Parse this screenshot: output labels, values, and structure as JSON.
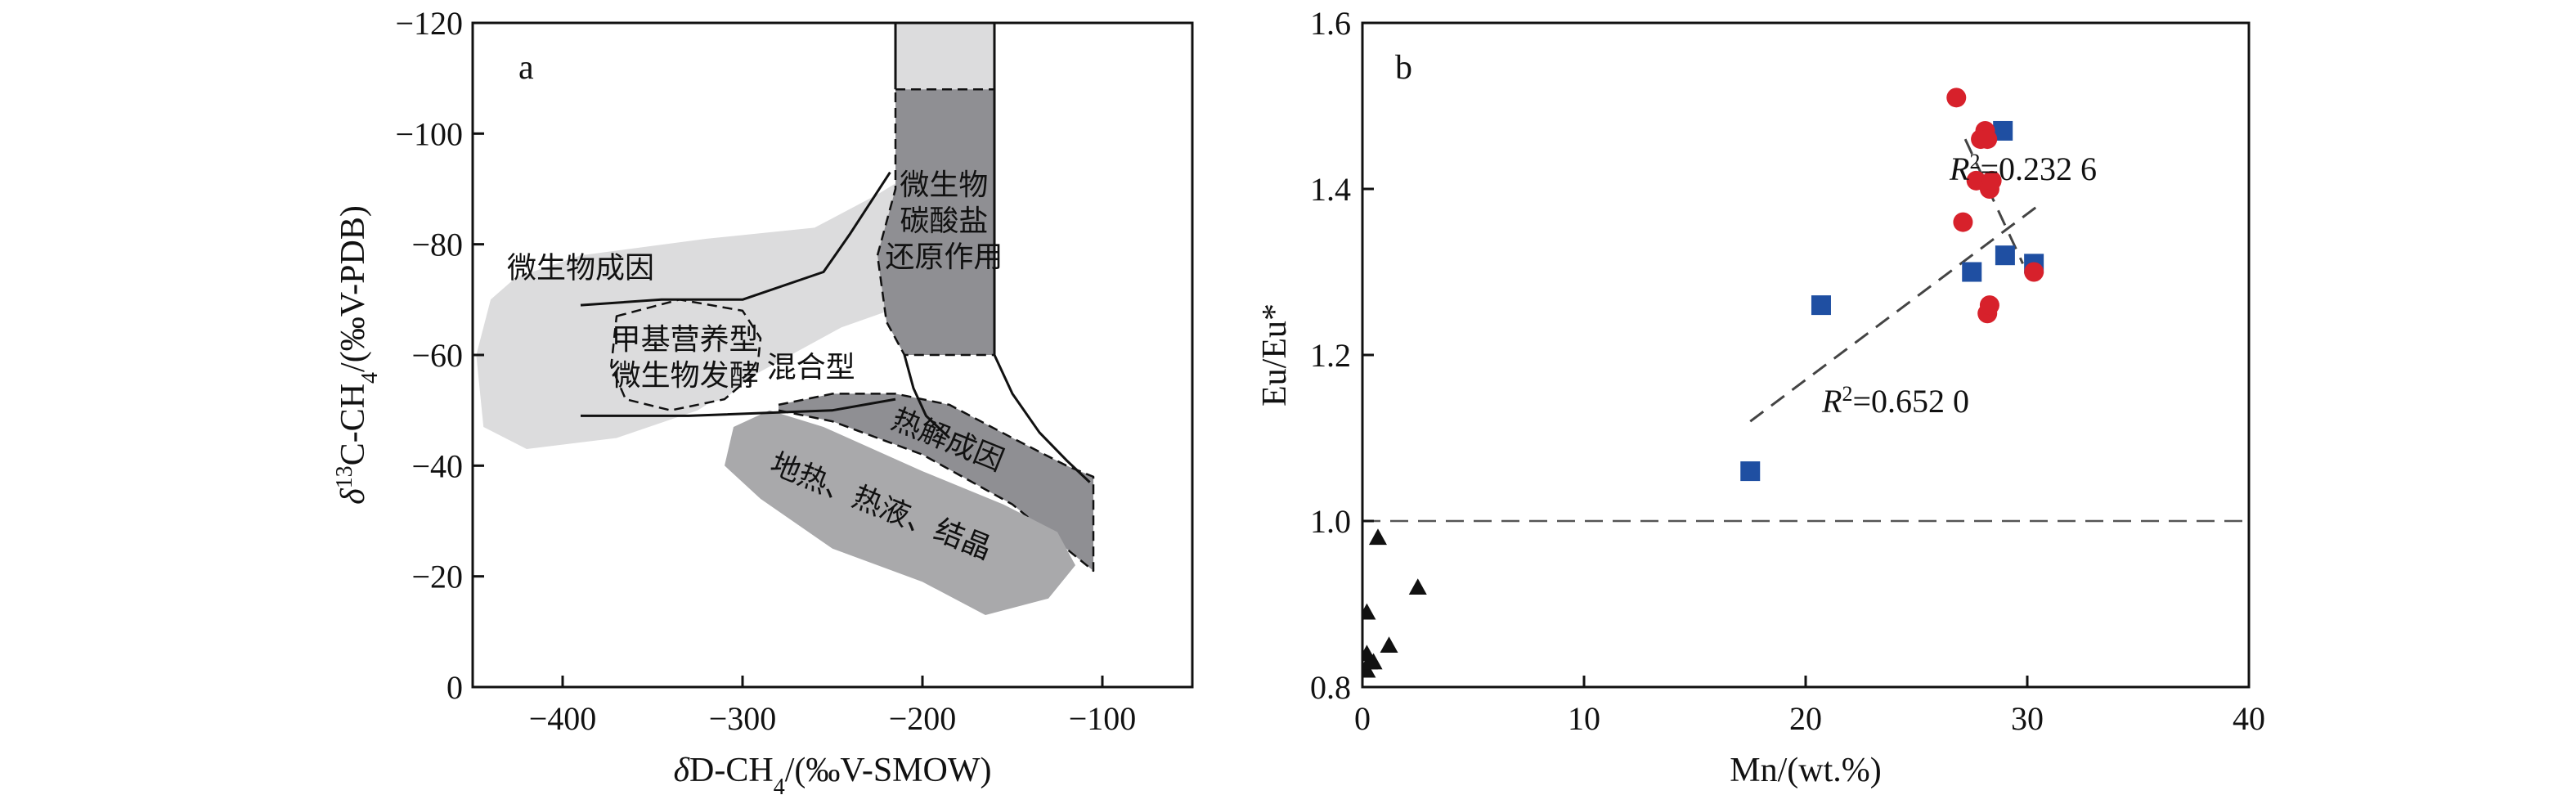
{
  "chart_data": [
    {
      "type": "diagram",
      "panel_label": "a",
      "xlabel": "δD-CH4/(‰V-SMOW)",
      "ylabel": "δ13C-CH4/(‰V-PDB)",
      "xlim": [
        -450,
        -50
      ],
      "ylim": [
        0,
        -120
      ],
      "xticks": [
        -400,
        -300,
        -200,
        -100
      ],
      "yticks": [
        0,
        -20,
        -40,
        -60,
        -80,
        -100,
        -120
      ],
      "xtick_labels": [
        "−400",
        "−300",
        "−200",
        "−100"
      ],
      "ytick_labels": [
        "0",
        "−20",
        "−40",
        "−60",
        "−80",
        "−100",
        "−120"
      ],
      "regions": [
        {
          "label": "微生物成因",
          "color": "#dcdcdd",
          "polygon": [
            [
              -426,
              -74
            ],
            [
              -390,
              -78
            ],
            [
              -320,
              -81
            ],
            [
              -260,
              -83
            ],
            [
              -225,
              -89
            ],
            [
              -205,
              -93
            ],
            [
              -200,
              -78
            ],
            [
              -210,
              -69
            ],
            [
              -245,
              -65
            ],
            [
              -290,
              -57
            ],
            [
              -325,
              -50
            ],
            [
              -370,
              -45
            ],
            [
              -420,
              -43
            ],
            [
              -444,
              -47
            ],
            [
              -448,
              -60
            ],
            [
              -440,
              -70
            ]
          ]
        },
        {
          "label": "甲基营养型微生物发酵混合型",
          "color": "#dcdcdd",
          "border": "dashed",
          "polygon": [
            [
              -370,
              -67
            ],
            [
              -335,
              -70
            ],
            [
              -300,
              -68
            ],
            [
              -290,
              -63
            ],
            [
              -292,
              -57
            ],
            [
              -310,
              -52
            ],
            [
              -340,
              -50
            ],
            [
              -365,
              -52
            ],
            [
              -373,
              -58
            ]
          ]
        },
        {
          "label": "微生物碳酸盐还原作用",
          "color": "#8f8f93",
          "border": "dashed",
          "polygon": [
            [
              -215,
              -108
            ],
            [
              -160,
              -108
            ],
            [
              -160,
              -60
            ],
            [
              -210,
              -60
            ],
            [
              -220,
              -66
            ],
            [
              -225,
              -78
            ],
            [
              -215,
              -90
            ]
          ]
        },
        {
          "label": "热解成因",
          "color": "#8f8f93",
          "border": "dashed",
          "polygon": [
            [
              -280,
              -51
            ],
            [
              -250,
              -53
            ],
            [
              -215,
              -53
            ],
            [
              -185,
              -51
            ],
            [
              -150,
              -45
            ],
            [
              -120,
              -40
            ],
            [
              -105,
              -38
            ],
            [
              -105,
              -21
            ],
            [
              -150,
              -33
            ],
            [
              -200,
              -42
            ],
            [
              -250,
              -48
            ],
            [
              -280,
              -50
            ]
          ]
        },
        {
          "label": "地热、热液、结晶",
          "color": "#a9a9ab",
          "polygon": [
            [
              -305,
              -47
            ],
            [
              -285,
              -50
            ],
            [
              -255,
              -47
            ],
            [
              -200,
              -39
            ],
            [
              -155,
              -33
            ],
            [
              -125,
              -28
            ],
            [
              -115,
              -22
            ],
            [
              -130,
              -16
            ],
            [
              -165,
              -13
            ],
            [
              -200,
              -19
            ],
            [
              -250,
              -25
            ],
            [
              -290,
              -34
            ],
            [
              -310,
              -40
            ]
          ]
        },
        {
          "label": "",
          "color": "#dcdcdd",
          "polygon": [
            [
              -215,
              -120
            ],
            [
              -160,
              -120
            ],
            [
              -160,
              -108
            ],
            [
              -215,
              -108
            ]
          ]
        }
      ],
      "boundary_lines": [
        [
          [
            -215,
            -120
          ],
          [
            -215,
            -108
          ]
        ],
        [
          [
            -160,
            -120
          ],
          [
            -160,
            -60
          ],
          [
            -160,
            -60
          ],
          [
            -150,
            -53
          ],
          [
            -135,
            -46
          ],
          [
            -120,
            -41
          ],
          [
            -107,
            -37
          ]
        ],
        [
          [
            -210,
            -60
          ],
          [
            -210,
            -60
          ],
          [
            -205,
            -54
          ],
          [
            -198,
            -49
          ],
          [
            -185,
            -45
          ]
        ],
        [
          [
            -390,
            -69
          ],
          [
            -345,
            -70
          ],
          [
            -300,
            -70
          ],
          [
            -255,
            -75
          ],
          [
            -240,
            -82
          ],
          [
            -218,
            -93
          ]
        ],
        [
          [
            -390,
            -49
          ],
          [
            -330,
            -49
          ],
          [
            -250,
            -50
          ],
          [
            -215,
            -52
          ]
        ]
      ]
    },
    {
      "type": "scatter",
      "panel_label": "b",
      "xlabel": "Mn/(wt.%)",
      "ylabel": "Eu/Eu*",
      "xlim": [
        0,
        40
      ],
      "ylim": [
        0.8,
        1.6
      ],
      "xticks": [
        0,
        10,
        20,
        30,
        40
      ],
      "yticks": [
        0.8,
        1.0,
        1.2,
        1.4,
        1.6
      ],
      "xtick_labels": [
        "0",
        "10",
        "20",
        "30",
        "40"
      ],
      "ytick_labels": [
        "0.8",
        "1.0",
        "1.2",
        "1.4",
        "1.6"
      ],
      "reference_line_y": 1.0,
      "series": [
        {
          "marker": "triangle",
          "color": "#111111",
          "x": [
            0.2,
            0.3,
            0.2,
            0.2,
            0.5,
            0.7,
            1.2,
            2.5
          ],
          "y": [
            0.82,
            0.83,
            0.84,
            0.89,
            0.83,
            0.98,
            0.85,
            0.92
          ]
        },
        {
          "marker": "square",
          "color": "#1f4fa2",
          "x": [
            17.5,
            20.7,
            27.5,
            28.9,
            29.0,
            30.3
          ],
          "y": [
            1.06,
            1.26,
            1.3,
            1.47,
            1.32,
            1.31
          ],
          "trendline": {
            "x": [
              17.5,
              30.5
            ],
            "y": [
              1.12,
              1.38
            ],
            "label": "R2=0.652 0"
          }
        },
        {
          "marker": "circle",
          "color": "#d7212b",
          "x": [
            26.8,
            27.1,
            27.7,
            27.9,
            28.1,
            28.2,
            28.3,
            28.4,
            28.2,
            28.3,
            30.3
          ],
          "y": [
            1.51,
            1.36,
            1.41,
            1.46,
            1.47,
            1.46,
            1.4,
            1.41,
            1.25,
            1.26,
            1.3
          ],
          "trendline": {
            "x": [
              27.2,
              29.8
            ],
            "y": [
              1.46,
              1.31
            ],
            "label": "R2=0.232 6"
          }
        }
      ]
    }
  ]
}
